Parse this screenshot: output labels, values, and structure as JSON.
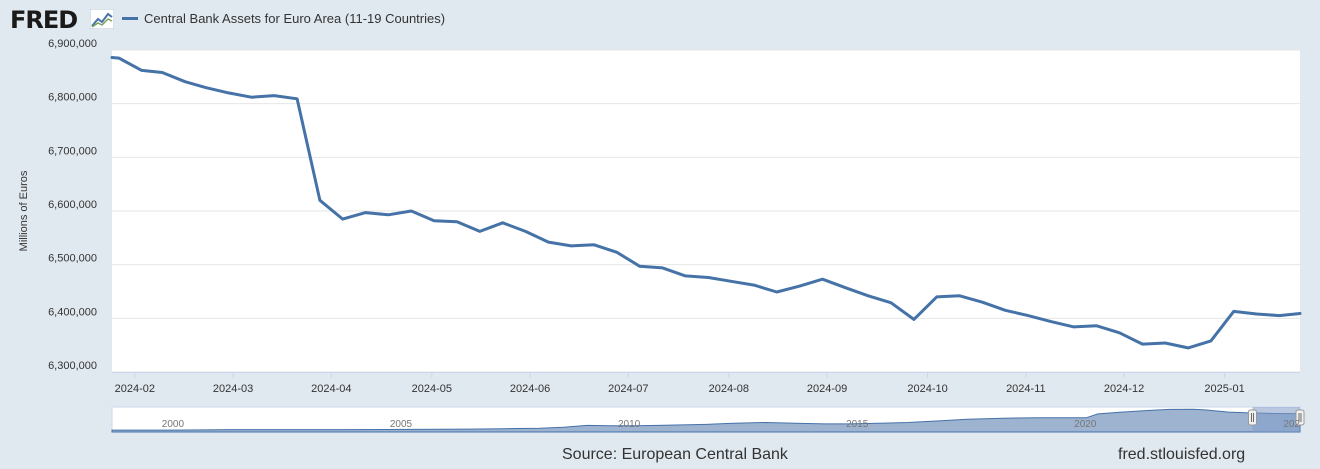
{
  "brand": {
    "logo_text": "FRED",
    "logo_icon": "chart-line-icon"
  },
  "colors": {
    "series": "#4572a7",
    "plot_bg": "#ffffff",
    "page_bg": "#e1e9f0",
    "grid": "#e6e6e6",
    "navigator_fill": "#9db3d0",
    "navigator_selected": "#7f9bc6"
  },
  "chart_data": {
    "type": "line",
    "title": "",
    "legend": "Central Bank Assets for Euro Area (11-19 Countries)",
    "legend_position": "top-left",
    "xlabel": "",
    "ylabel": "Millions of Euros",
    "ylim": [
      6300000,
      6900000
    ],
    "x_range": [
      0,
      52
    ],
    "y_ticks": [
      {
        "value": 6900000,
        "label": "6,900,000"
      },
      {
        "value": 6800000,
        "label": "6,800,000"
      },
      {
        "value": 6700000,
        "label": "6,700,000"
      },
      {
        "value": 6600000,
        "label": "6,600,000"
      },
      {
        "value": 6500000,
        "label": "6,500,000"
      },
      {
        "value": 6400000,
        "label": "6,400,000"
      },
      {
        "value": 6300000,
        "label": "6,300,000"
      }
    ],
    "x_ticks": [
      {
        "x": 1,
        "label": "2024-02"
      },
      {
        "x": 5.3,
        "label": "2024-03"
      },
      {
        "x": 9.6,
        "label": "2024-04"
      },
      {
        "x": 14,
        "label": "2024-05"
      },
      {
        "x": 18.3,
        "label": "2024-06"
      },
      {
        "x": 22.6,
        "label": "2024-07"
      },
      {
        "x": 27,
        "label": "2024-08"
      },
      {
        "x": 31.3,
        "label": "2024-09"
      },
      {
        "x": 35.7,
        "label": "2024-10"
      },
      {
        "x": 40,
        "label": "2024-11"
      },
      {
        "x": 44.3,
        "label": "2024-12"
      },
      {
        "x": 48.7,
        "label": "2025-01"
      }
    ],
    "series": [
      {
        "name": "Central Bank Assets for Euro Area (11-19 Countries)",
        "x": [
          0,
          0.3,
          1.3,
          2.2,
          3.2,
          4.1,
          5.1,
          6.1,
          7.1,
          8.1,
          9.1,
          10.1,
          11.1,
          12.1,
          13.1,
          14.1,
          15.1,
          16.1,
          17.1,
          18.1,
          19.1,
          20.1,
          21.1,
          22.1,
          23.1,
          24.1,
          25.1,
          26.1,
          27.1,
          28.1,
          29.1,
          30.1,
          31.1,
          32.1,
          33.1,
          34.1,
          35.1,
          36.1,
          37.1,
          38.1,
          39.1,
          40.1,
          41.1,
          42.1,
          43.1,
          44.1,
          45.1,
          46.1,
          47.1,
          48.1,
          49.1,
          50.1,
          51.1,
          52
        ],
        "values": [
          6886000,
          6885000,
          6862000,
          6858000,
          6841000,
          6830000,
          6820000,
          6812000,
          6815000,
          6809000,
          6620000,
          6585000,
          6597000,
          6593000,
          6600000,
          6582000,
          6580000,
          6562000,
          6578000,
          6562000,
          6542000,
          6535000,
          6537000,
          6523000,
          6497000,
          6494000,
          6479000,
          6476000,
          6469000,
          6462000,
          6449000,
          6460000,
          6473000,
          6457000,
          6442000,
          6429000,
          6398000,
          6440000,
          6442000,
          6430000,
          6415000,
          6405000,
          6394000,
          6384000,
          6386000,
          6373000,
          6352000,
          6354000,
          6345000,
          6358000,
          6413000,
          6408000,
          6405000,
          6409000
        ]
      }
    ],
    "navigator": {
      "labels": [
        {
          "pos": 0.052,
          "text": "2000"
        },
        {
          "pos": 0.244,
          "text": "2005"
        },
        {
          "pos": 0.436,
          "text": "2010"
        },
        {
          "pos": 0.628,
          "text": "2015"
        },
        {
          "pos": 0.82,
          "text": "2020"
        },
        {
          "pos": 1.0,
          "text": "202"
        }
      ],
      "profile": [
        [
          0,
          0.08
        ],
        [
          0.05,
          0.08
        ],
        [
          0.1,
          0.1
        ],
        [
          0.15,
          0.1
        ],
        [
          0.2,
          0.1
        ],
        [
          0.25,
          0.11
        ],
        [
          0.3,
          0.12
        ],
        [
          0.33,
          0.14
        ],
        [
          0.36,
          0.16
        ],
        [
          0.38,
          0.2
        ],
        [
          0.4,
          0.28
        ],
        [
          0.42,
          0.26
        ],
        [
          0.44,
          0.26
        ],
        [
          0.46,
          0.28
        ],
        [
          0.48,
          0.3
        ],
        [
          0.5,
          0.32
        ],
        [
          0.52,
          0.36
        ],
        [
          0.55,
          0.4
        ],
        [
          0.58,
          0.36
        ],
        [
          0.6,
          0.34
        ],
        [
          0.62,
          0.34
        ],
        [
          0.64,
          0.36
        ],
        [
          0.67,
          0.4
        ],
        [
          0.7,
          0.48
        ],
        [
          0.72,
          0.54
        ],
        [
          0.75,
          0.58
        ],
        [
          0.78,
          0.6
        ],
        [
          0.8,
          0.6
        ],
        [
          0.82,
          0.6
        ],
        [
          0.83,
          0.76
        ],
        [
          0.85,
          0.84
        ],
        [
          0.87,
          0.9
        ],
        [
          0.89,
          0.95
        ],
        [
          0.91,
          0.96
        ],
        [
          0.92,
          0.93
        ],
        [
          0.94,
          0.84
        ],
        [
          0.96,
          0.8
        ],
        [
          0.98,
          0.78
        ],
        [
          1.0,
          0.77
        ]
      ],
      "selected_range": [
        0.96,
        1.0
      ]
    }
  },
  "footer": {
    "source": "Source: European Central Bank",
    "url": "fred.stlouisfed.org"
  }
}
